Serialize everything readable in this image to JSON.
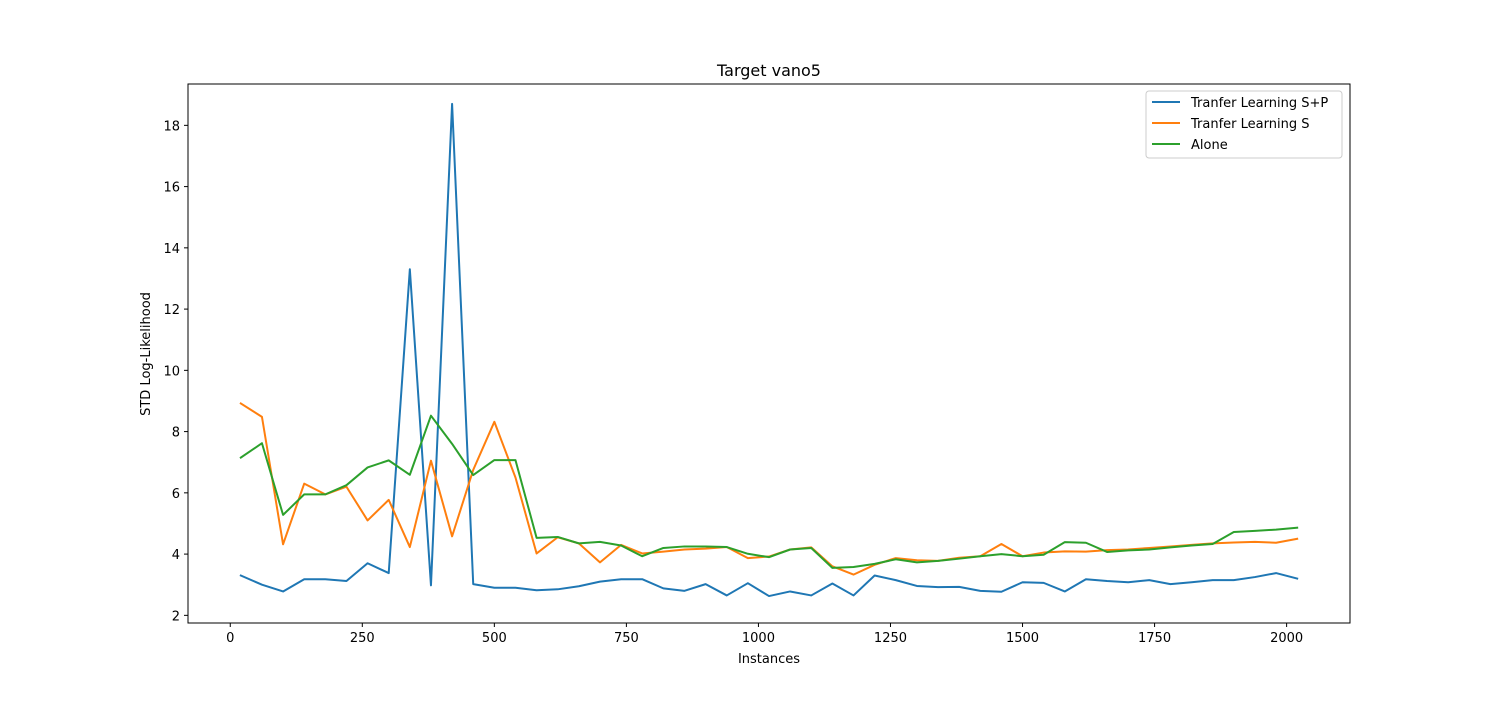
{
  "chart_data": {
    "type": "line",
    "title": "Target vano5",
    "xlabel": "Instances",
    "ylabel": "STD Log-Likelihood",
    "xlim": [
      -80,
      2120
    ],
    "ylim": [
      1.75,
      19.35
    ],
    "xticks": [
      0,
      250,
      500,
      750,
      1000,
      1250,
      1500,
      1750,
      2000
    ],
    "yticks": [
      2,
      4,
      6,
      8,
      10,
      12,
      14,
      16,
      18
    ],
    "grid": false,
    "legend_position": "top-right",
    "x": [
      20,
      60,
      100,
      140,
      180,
      220,
      260,
      300,
      340,
      380,
      420,
      460,
      500,
      540,
      580,
      620,
      660,
      700,
      740,
      780,
      820,
      860,
      900,
      940,
      980,
      1020,
      1060,
      1100,
      1140,
      1180,
      1220,
      1260,
      1300,
      1340,
      1380,
      1420,
      1460,
      1500,
      1540,
      1580,
      1620,
      1660,
      1700,
      1740,
      1780,
      1820,
      1860,
      1900,
      1940,
      1980,
      2020
    ],
    "series": [
      {
        "name": "Tranfer Learning S+P",
        "color": "#1f77b4",
        "values": [
          3.3,
          3.0,
          2.78,
          3.18,
          3.18,
          3.12,
          3.7,
          3.38,
          13.3,
          2.98,
          18.7,
          3.02,
          2.9,
          2.9,
          2.82,
          2.85,
          2.95,
          3.1,
          3.18,
          3.18,
          2.88,
          2.8,
          3.02,
          2.65,
          3.05,
          2.63,
          2.78,
          2.65,
          3.04,
          2.65,
          3.3,
          3.15,
          2.96,
          2.92,
          2.93,
          2.8,
          2.77,
          3.08,
          3.06,
          2.78,
          3.18,
          3.12,
          3.08,
          3.15,
          3.02,
          3.08,
          3.15,
          3.15,
          3.25,
          3.38,
          3.2
        ]
      },
      {
        "name": "Tranfer Learning S",
        "color": "#ff7f0e",
        "values": [
          8.92,
          8.48,
          4.32,
          6.3,
          5.95,
          6.2,
          5.1,
          5.77,
          4.23,
          7.05,
          4.58,
          6.75,
          8.32,
          6.5,
          4.02,
          4.55,
          4.35,
          3.73,
          4.3,
          4.02,
          4.08,
          4.15,
          4.18,
          4.23,
          3.87,
          3.92,
          4.15,
          4.22,
          3.6,
          3.33,
          3.65,
          3.87,
          3.8,
          3.78,
          3.88,
          3.93,
          4.33,
          3.93,
          4.05,
          4.09,
          4.08,
          4.13,
          4.15,
          4.2,
          4.25,
          4.3,
          4.35,
          4.38,
          4.4,
          4.37,
          4.5
        ]
      },
      {
        "name": "Alone",
        "color": "#2ca02c",
        "values": [
          7.15,
          7.62,
          5.28,
          5.95,
          5.95,
          6.25,
          6.83,
          7.06,
          6.59,
          8.52,
          7.6,
          6.58,
          7.07,
          7.07,
          4.53,
          4.56,
          4.35,
          4.4,
          4.28,
          3.93,
          4.2,
          4.25,
          4.25,
          4.23,
          4.01,
          3.9,
          4.15,
          4.2,
          3.55,
          3.58,
          3.68,
          3.83,
          3.73,
          3.78,
          3.85,
          3.93,
          4.0,
          3.93,
          3.98,
          4.39,
          4.37,
          4.07,
          4.12,
          4.15,
          4.22,
          4.28,
          4.33,
          4.72,
          4.76,
          4.8,
          4.86
        ]
      }
    ]
  }
}
